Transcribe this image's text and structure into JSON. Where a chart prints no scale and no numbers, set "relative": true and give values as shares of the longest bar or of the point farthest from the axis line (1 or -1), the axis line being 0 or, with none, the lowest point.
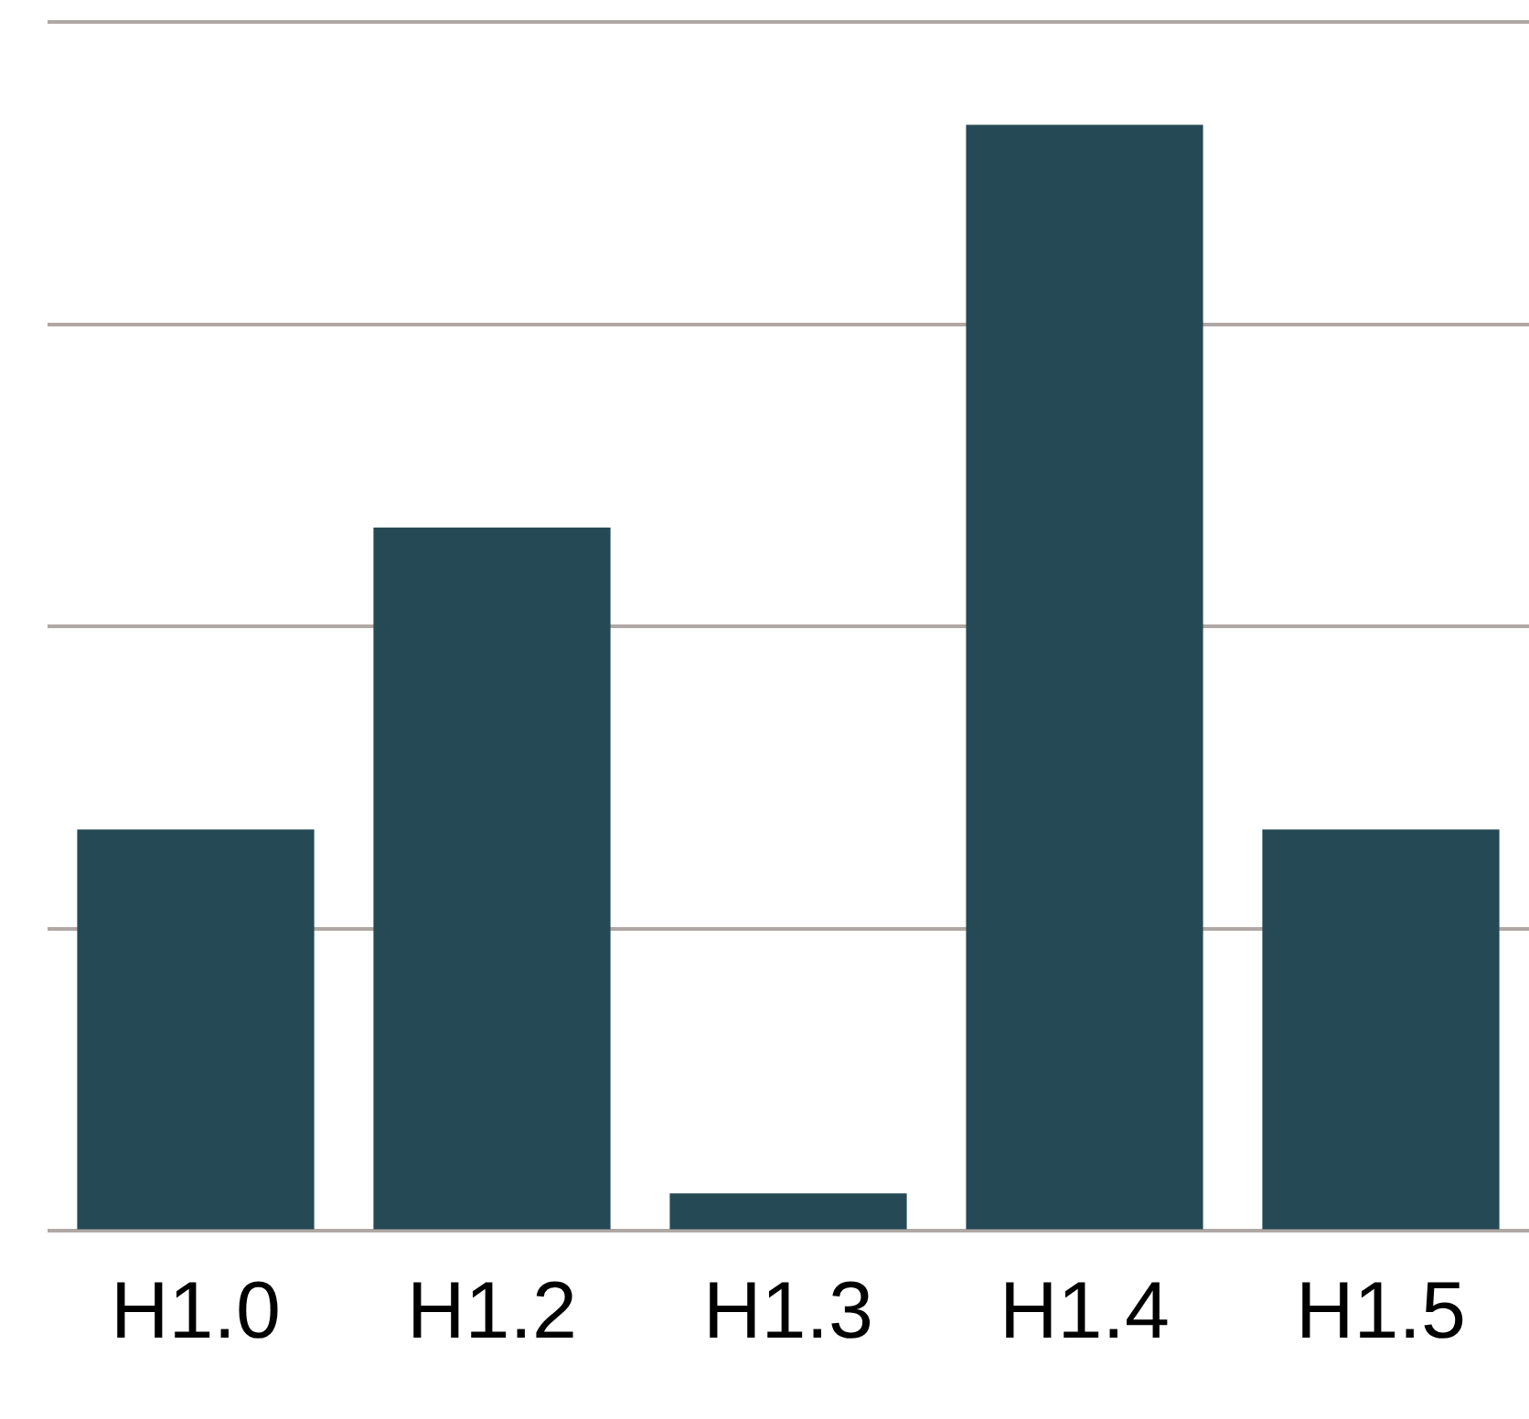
{
  "chart_data": {
    "type": "bar",
    "relative": true,
    "categories": [
      "H1.0",
      "H1.2",
      "H1.3",
      "H1.4",
      "H1.5"
    ],
    "values": [
      0.363,
      0.636,
      0.034,
      1,
      0.363
    ],
    "color": "#264a55",
    "grid": "y",
    "legend": false
  }
}
